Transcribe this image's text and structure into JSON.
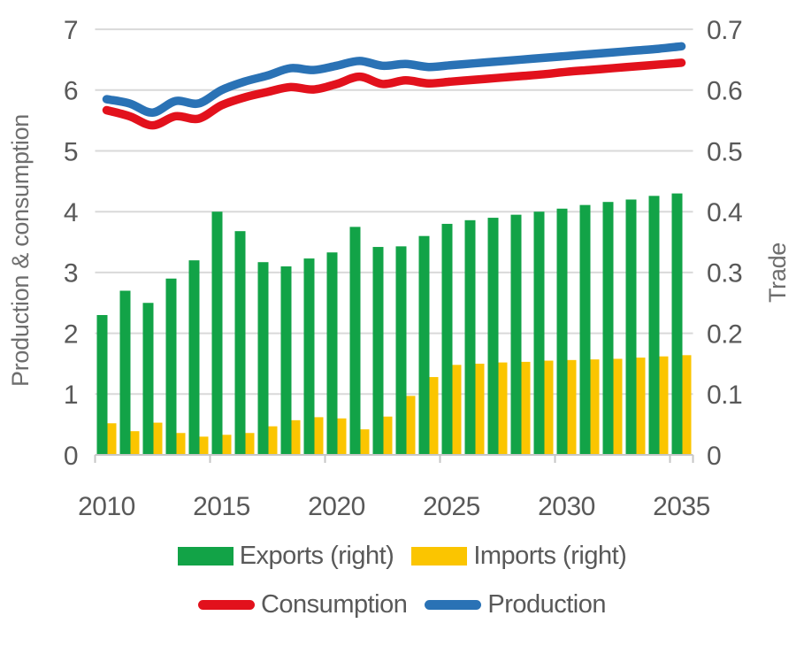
{
  "chart_data": {
    "type": "combo",
    "categories": [
      2010,
      2011,
      2012,
      2013,
      2014,
      2015,
      2016,
      2017,
      2018,
      2019,
      2020,
      2021,
      2022,
      2023,
      2024,
      2025,
      2026,
      2027,
      2028,
      2029,
      2030,
      2031,
      2032,
      2033,
      2034,
      2035
    ],
    "x_ticks": [
      "2010",
      "2015",
      "2020",
      "2025",
      "2030",
      "2035"
    ],
    "left_axis": {
      "title": "Production & consumption",
      "min": 0,
      "max": 7,
      "tick_labels": [
        "0",
        "1",
        "2",
        "3",
        "4",
        "5",
        "6",
        "7"
      ]
    },
    "right_axis": {
      "title": "Trade",
      "min": 0,
      "max": 0.7,
      "tick_labels": [
        "0",
        "0.1",
        "0.2",
        "0.3",
        "0.4",
        "0.5",
        "0.6",
        "0.7"
      ]
    },
    "grid": "horizontal",
    "legend_position": "bottom",
    "series": [
      {
        "name": "Exports (right)",
        "type": "bar",
        "axis": "right",
        "color": "#12a347",
        "values": [
          0.23,
          0.27,
          0.25,
          0.29,
          0.32,
          0.4,
          0.368,
          0.317,
          0.31,
          0.323,
          0.333,
          0.375,
          0.342,
          0.343,
          0.36,
          0.38,
          0.386,
          0.39,
          0.395,
          0.4,
          0.405,
          0.411,
          0.416,
          0.42,
          0.426,
          0.43
        ]
      },
      {
        "name": "Imports (right)",
        "type": "bar",
        "axis": "right",
        "color": "#fbc500",
        "values": [
          0.052,
          0.039,
          0.053,
          0.036,
          0.03,
          0.033,
          0.036,
          0.047,
          0.057,
          0.062,
          0.06,
          0.042,
          0.063,
          0.097,
          0.128,
          0.148,
          0.15,
          0.152,
          0.153,
          0.155,
          0.156,
          0.157,
          0.158,
          0.16,
          0.162,
          0.164
        ]
      },
      {
        "name": "Consumption",
        "type": "line",
        "axis": "left",
        "color": "#e2111c",
        "values": [
          5.67,
          5.57,
          5.42,
          5.57,
          5.53,
          5.75,
          5.88,
          5.97,
          6.05,
          6.01,
          6.1,
          6.22,
          6.1,
          6.16,
          6.11,
          6.14,
          6.17,
          6.2,
          6.23,
          6.26,
          6.3,
          6.33,
          6.36,
          6.39,
          6.42,
          6.45
        ]
      },
      {
        "name": "Production",
        "type": "line",
        "axis": "left",
        "color": "#2a72b5",
        "values": [
          5.85,
          5.78,
          5.63,
          5.82,
          5.78,
          6.0,
          6.14,
          6.24,
          6.36,
          6.33,
          6.4,
          6.48,
          6.4,
          6.43,
          6.38,
          6.41,
          6.44,
          6.47,
          6.5,
          6.53,
          6.56,
          6.59,
          6.62,
          6.65,
          6.68,
          6.72
        ]
      }
    ],
    "grid_color": "#d9d9d9",
    "axis_line_color": "#c6c6c6"
  }
}
